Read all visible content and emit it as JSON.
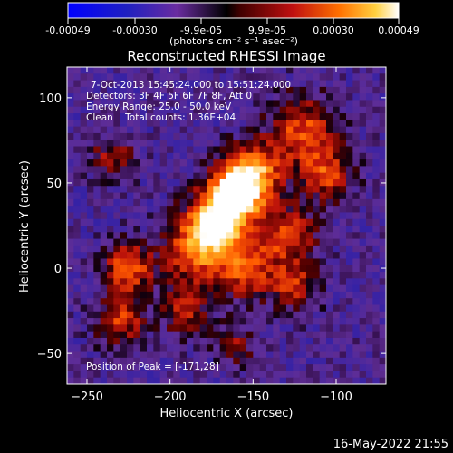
{
  "colorbar": {
    "ticks": [
      "-0.00049",
      "-0.00030",
      "-9.9e-05",
      "9.9e-05",
      "0.00030",
      "0.00049"
    ],
    "unit_label": "(photons cm⁻² s⁻¹ asec⁻²)"
  },
  "plot": {
    "title": "Reconstructed RHESSI Image",
    "info_lines": [
      "7-Oct-2013 15:45:24.000 to 15:51:24.000",
      "Detectors: 3F 4F 5F 6F 7F 8F, Att 0",
      "Energy Range: 25.0 - 50.0 keV",
      "Clean    Total counts: 1.36E+04"
    ],
    "peak_label": "Position of Peak = [-171,28]"
  },
  "footer": {
    "timestamp": "16-May-2022 21:55"
  },
  "chart_data": {
    "type": "heatmap",
    "title": "Reconstructed RHESSI Image",
    "xlabel": "Heliocentric X (arcsec)",
    "ylabel": "Heliocentric Y (arcsec)",
    "xlim": [
      -262,
      -70
    ],
    "ylim": [
      -68,
      118
    ],
    "xticks": [
      -250,
      -200,
      -150,
      -100
    ],
    "yticks": [
      -50,
      0,
      50,
      100
    ],
    "colorbar_range": [
      -0.00049,
      0.00049
    ],
    "peak": [
      -171,
      28
    ],
    "sources": [
      {
        "x": -171,
        "y": 28,
        "sigma": 12,
        "amp": 1.0
      },
      {
        "x": -160,
        "y": 45,
        "sigma": 11,
        "amp": 0.75
      },
      {
        "x": -150,
        "y": 55,
        "sigma": 12,
        "amp": 0.7
      },
      {
        "x": -185,
        "y": 10,
        "sigma": 13,
        "amp": 0.6
      },
      {
        "x": -155,
        "y": 0,
        "sigma": 12,
        "amp": 0.55
      },
      {
        "x": -130,
        "y": 20,
        "sigma": 12,
        "amp": 0.5
      },
      {
        "x": -120,
        "y": 80,
        "sigma": 14,
        "amp": 0.55
      },
      {
        "x": -105,
        "y": 55,
        "sigma": 10,
        "amp": 0.5
      },
      {
        "x": -125,
        "y": -10,
        "sigma": 10,
        "amp": 0.45
      },
      {
        "x": -225,
        "y": 0,
        "sigma": 10,
        "amp": 0.6
      },
      {
        "x": -230,
        "y": -30,
        "sigma": 10,
        "amp": 0.5
      },
      {
        "x": -190,
        "y": -25,
        "sigma": 10,
        "amp": 0.4
      },
      {
        "x": -235,
        "y": 65,
        "sigma": 9,
        "amp": 0.35
      },
      {
        "x": -160,
        "y": -45,
        "sigma": 8,
        "amp": 0.3
      }
    ],
    "background_level": 0.0
  }
}
